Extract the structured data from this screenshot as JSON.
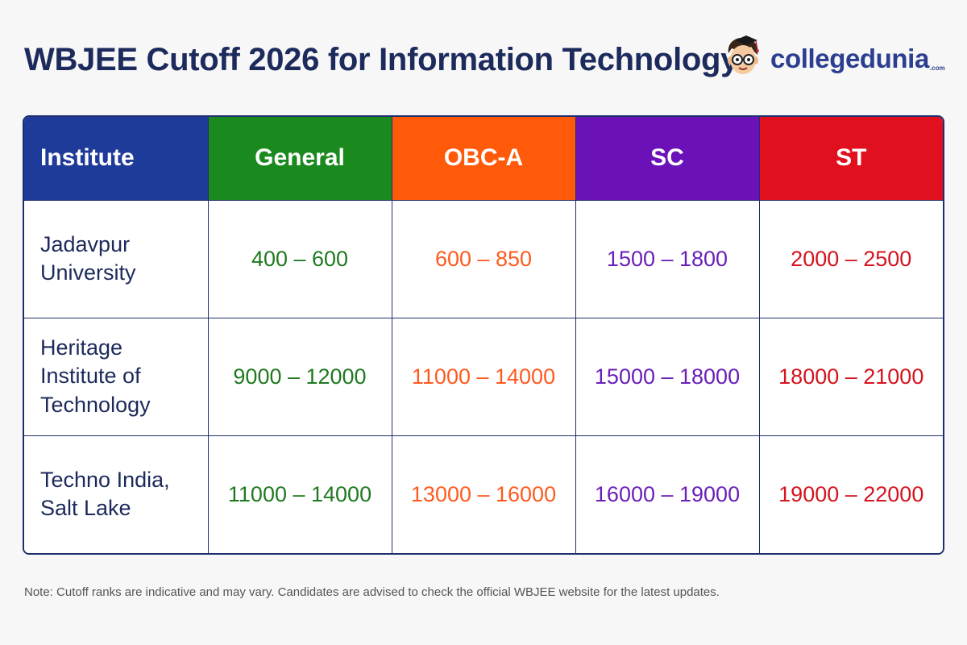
{
  "header": {
    "title": "WBJEE Cutoff 2026 for Information Technology",
    "brand_name": "collegedunia",
    "brand_suffix": ".com",
    "logo_icon": "student-mascot-icon"
  },
  "colors": {
    "title": "#1c2a5c",
    "border": "#1f2f6e",
    "institute_header": "#1f3b99",
    "general": "#1a8a1f",
    "obc": "#ff5a0a",
    "sc": "#6a12b8",
    "st": "#e0101e",
    "general_text": "#1f7a1f",
    "obc_text": "#ff5a1f",
    "sc_text": "#6a1fb8",
    "st_text": "#d4141f"
  },
  "chart_data": {
    "type": "table",
    "columns": [
      "Institute",
      "General",
      "OBC-A",
      "SC",
      "ST"
    ],
    "rows": [
      {
        "institute": "Jadavpur University",
        "general": "400 – 600",
        "obc": "600 – 850",
        "sc": "1500 – 1800",
        "st": "2000 – 2500"
      },
      {
        "institute": "Heritage Institute of Technology",
        "general": "9000 – 12000",
        "obc": "11000 – 14000",
        "sc": "15000 – 18000",
        "st": "18000 – 21000"
      },
      {
        "institute": "Techno India, Salt Lake",
        "general": "11000 – 14000",
        "obc": "13000 – 16000",
        "sc": "16000 – 19000",
        "st": "19000 – 22000"
      }
    ]
  },
  "footer": {
    "note": "Note: Cutoff ranks are indicative and may vary. Candidates are advised to check the official WBJEE website for the latest updates."
  }
}
